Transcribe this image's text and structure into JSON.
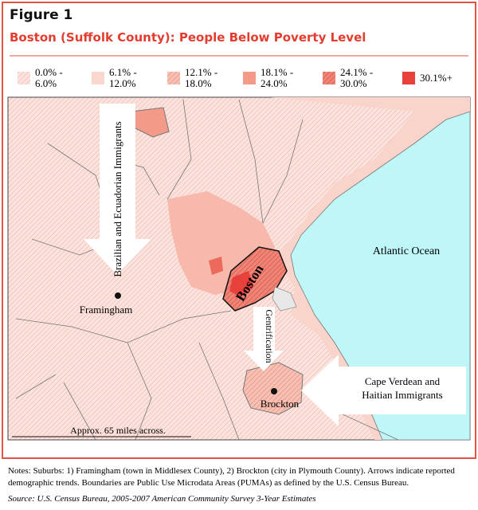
{
  "header": {
    "figure": "Figure 1",
    "title": "Boston (Suffolk County): People Below Poverty Level"
  },
  "legend": [
    {
      "lines": [
        "0.0% -",
        "6.0%"
      ]
    },
    {
      "lines": [
        "6.1% -",
        "12.0%"
      ]
    },
    {
      "lines": [
        "12.1% -",
        "18.0%"
      ]
    },
    {
      "lines": [
        "18.1% -",
        "24.0%"
      ]
    },
    {
      "lines": [
        "24.1% -",
        "30.0%"
      ]
    },
    {
      "lines": [
        "30.1%+"
      ]
    }
  ],
  "map": {
    "labels": {
      "migration_west": "Brazilian and Ecuadorian Immigrants",
      "framingham": "Framingham",
      "boston": "Boston",
      "gentrification": "Gentrification",
      "ocean": "Atlantic Ocean",
      "migration_south": [
        "Cape Verdean and",
        "Haitian Immigrants"
      ],
      "brockton": "Brockton",
      "scale": "Approx. 65 miles across."
    }
  },
  "notes": [
    "Notes: Suburbs: 1) Framingham (town in Middlesex County), 2) Brockton (city in Plymouth County). Arrows indicate reported",
    "demographic trends. Boundaries are Public Use Microdata Areas (PUMAs) as defined by the U.S. Census Bureau."
  ],
  "source": "Source: U.S. Census Bureau, 2005-2007 American Community Survey 3-Year Estimates"
}
